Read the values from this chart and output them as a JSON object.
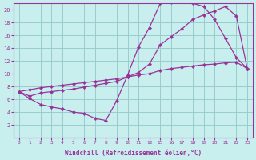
{
  "xlabel": "Windchill (Refroidissement éolien,°C)",
  "bg_color": "#c8eeed",
  "grid_color": "#99cccc",
  "line_color": "#993399",
  "ylim": [
    0,
    21
  ],
  "yticks": [
    2,
    4,
    6,
    8,
    10,
    12,
    14,
    16,
    18,
    20
  ],
  "xtick_labels": [
    "0",
    "1",
    "2",
    "3",
    "4",
    "5",
    "6",
    "7",
    "8",
    "9",
    "10",
    "11",
    "12",
    "15",
    "16",
    "17",
    "18",
    "19",
    "20",
    "21",
    "22",
    "23"
  ],
  "series1_y": [
    7.2,
    6.1,
    5.2,
    4.8,
    4.5,
    4.0,
    3.8,
    3.0,
    2.7,
    5.8,
    9.8,
    14.2,
    17.2,
    21.0,
    21.2,
    21.5,
    21.0,
    20.5,
    18.5,
    15.5,
    12.5,
    10.8
  ],
  "series2_y": [
    7.2,
    6.5,
    7.0,
    7.2,
    7.4,
    7.6,
    7.9,
    8.2,
    8.5,
    8.8,
    9.5,
    10.2,
    11.5,
    14.5,
    15.8,
    17.0,
    18.5,
    19.2,
    19.8,
    20.5,
    19.0,
    10.8
  ],
  "series3_y": [
    7.2,
    7.5,
    7.8,
    8.0,
    8.2,
    8.4,
    8.6,
    8.8,
    9.0,
    9.2,
    9.5,
    9.8,
    10.0,
    10.5,
    10.8,
    11.0,
    11.2,
    11.4,
    11.5,
    11.7,
    11.8,
    10.8
  ]
}
